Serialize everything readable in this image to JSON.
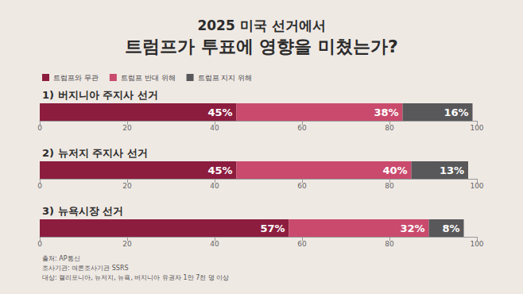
{
  "chart_data": {
    "type": "bar",
    "title": "2025 미국 선거에서",
    "subtitle": "트럼프가 투표에 영향을 미쳤는가?",
    "categories": [
      "1) 버지니아 주지사 선거",
      "2) 뉴저지 주지사 선거",
      "3) 뉴욕시장 선거"
    ],
    "series": [
      {
        "name": "트럼프와 무관",
        "color": "#8c1d3f",
        "values": [
          45,
          45,
          57
        ],
        "value_labels": [
          "45%",
          "45%",
          "57%"
        ]
      },
      {
        "name": "트럼프 반대 위해",
        "color": "#c94a6d",
        "values": [
          38,
          40,
          32
        ],
        "value_labels": [
          "38%",
          "40%",
          "32%"
        ]
      },
      {
        "name": "트럼프 지지 위해",
        "color": "#58585a",
        "values": [
          16,
          13,
          8
        ],
        "value_labels": [
          "16%",
          "13%",
          "8%"
        ]
      }
    ],
    "xlim": [
      0,
      100
    ],
    "xticks": [
      0,
      20,
      40,
      60,
      80,
      100
    ],
    "orientation": "horizontal",
    "stacked": true,
    "data_labels": true,
    "grid": false,
    "legend": "top-left",
    "annotations": [
      "출처: AP통신",
      "조사기관: 여론조사기관 SSRS",
      "대상: 캘리포니아, 뉴저지, 뉴욕, 버지니아 유권자 1만 7천 명 이상"
    ]
  }
}
